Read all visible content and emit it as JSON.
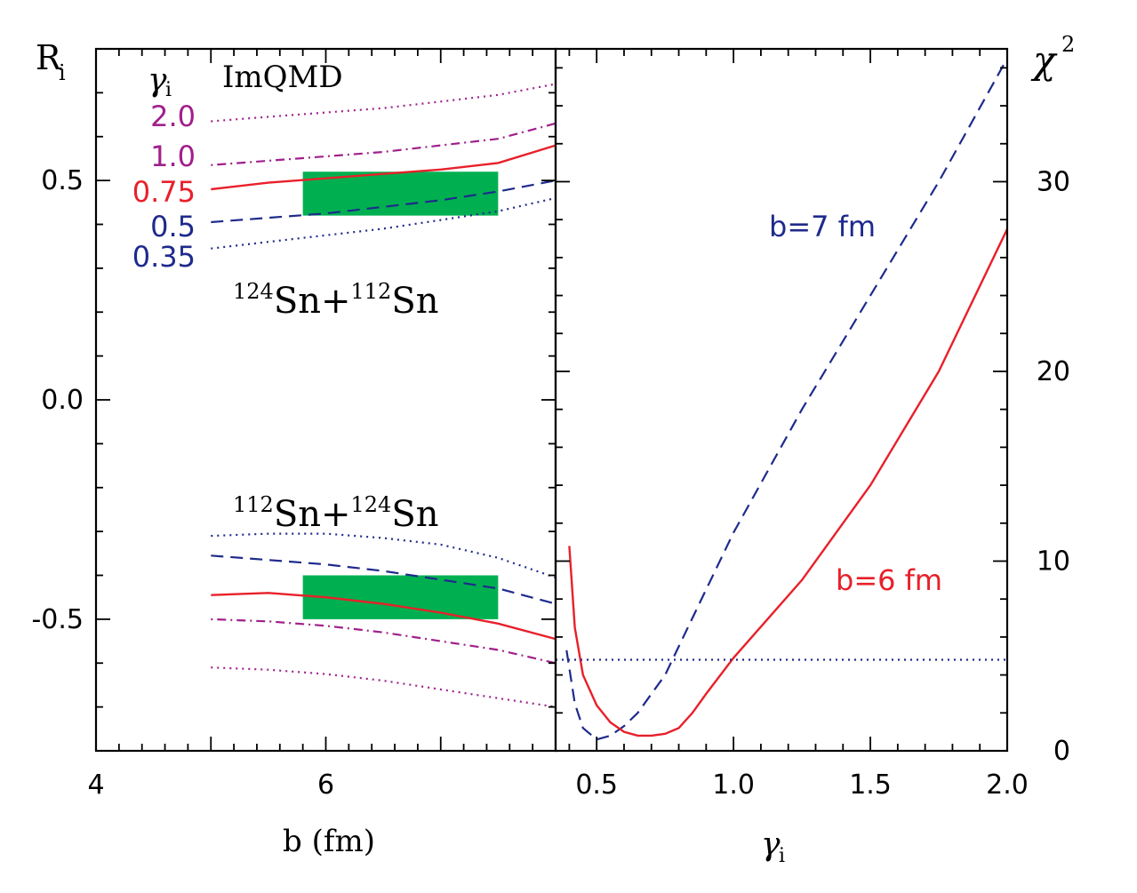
{
  "colors": {
    "red": "#e8202a",
    "blue": "#1e2a8c",
    "magenta": "#a0208c",
    "green": "#00b050",
    "axis": "#000000"
  },
  "chart_data": [
    {
      "type": "line",
      "panel": "left",
      "title": "",
      "xlabel": "b (fm)",
      "ylabel": "R",
      "ylabel_sub": "i",
      "xlim": [
        4,
        8
      ],
      "ylim": [
        -0.8,
        0.8
      ],
      "xticks": [
        "4",
        "6"
      ],
      "yticks": [
        "0.5",
        "0.0",
        "-0.5"
      ],
      "model_label": "ImQMD",
      "legend_title": "γ",
      "legend_title_sub": "i",
      "legend": [
        {
          "label": "2.0",
          "color": "#a0208c"
        },
        {
          "label": "1.0",
          "color": "#a0208c"
        },
        {
          "label": "0.75",
          "color": "#e8202a"
        },
        {
          "label": "0.5",
          "color": "#1e2a8c"
        },
        {
          "label": "0.35",
          "color": "#1e2a8c"
        }
      ],
      "annotations": [
        {
          "text_parts": [
            "124",
            "Sn+",
            "112",
            "Sn"
          ]
        },
        {
          "text_parts": [
            "112",
            "Sn+",
            "124",
            "Sn"
          ]
        }
      ],
      "x": [
        5,
        5.5,
        6,
        6.5,
        7,
        7.5,
        8
      ],
      "series": [
        {
          "name": "2.0 (124Sn+112Sn)",
          "style": "dotted",
          "color": "#a0208c",
          "values": [
            0.635,
            0.645,
            0.655,
            0.665,
            0.68,
            0.695,
            0.72
          ]
        },
        {
          "name": "1.0 (124Sn+112Sn)",
          "style": "dashdot",
          "color": "#a0208c",
          "values": [
            0.535,
            0.545,
            0.555,
            0.565,
            0.58,
            0.595,
            0.63
          ]
        },
        {
          "name": "0.75 (124Sn+112Sn)",
          "style": "solid",
          "color": "#e8202a",
          "values": [
            0.48,
            0.495,
            0.505,
            0.515,
            0.525,
            0.54,
            0.58
          ]
        },
        {
          "name": "0.5 (124Sn+112Sn)",
          "style": "dashed",
          "color": "#1e2a8c",
          "values": [
            0.405,
            0.415,
            0.425,
            0.44,
            0.455,
            0.475,
            0.5
          ]
        },
        {
          "name": "0.35 (124Sn+112Sn)",
          "style": "dotted",
          "color": "#1e2a8c",
          "values": [
            0.345,
            0.36,
            0.375,
            0.39,
            0.41,
            0.43,
            0.46
          ]
        },
        {
          "name": "0.35 (112Sn+124Sn)",
          "style": "dotted",
          "color": "#1e2a8c",
          "values": [
            -0.31,
            -0.305,
            -0.305,
            -0.315,
            -0.33,
            -0.36,
            -0.405
          ]
        },
        {
          "name": "0.5 (112Sn+124Sn)",
          "style": "dashed",
          "color": "#1e2a8c",
          "values": [
            -0.355,
            -0.365,
            -0.375,
            -0.39,
            -0.41,
            -0.43,
            -0.465
          ]
        },
        {
          "name": "0.75 (112Sn+124Sn)",
          "style": "solid",
          "color": "#e8202a",
          "values": [
            -0.445,
            -0.44,
            -0.45,
            -0.465,
            -0.485,
            -0.51,
            -0.545
          ]
        },
        {
          "name": "1.0 (112Sn+124Sn)",
          "style": "dashdot",
          "color": "#a0208c",
          "values": [
            -0.5,
            -0.505,
            -0.515,
            -0.53,
            -0.55,
            -0.57,
            -0.6
          ]
        },
        {
          "name": "2.0 (112Sn+124Sn)",
          "style": "dotted",
          "color": "#a0208c",
          "values": [
            -0.61,
            -0.615,
            -0.625,
            -0.64,
            -0.66,
            -0.68,
            -0.7
          ]
        }
      ],
      "bands": [
        {
          "name": "data (124Sn+112Sn)",
          "color": "#00b050",
          "x": [
            5.8,
            7.5
          ],
          "y": [
            0.42,
            0.52
          ]
        },
        {
          "name": "data (112Sn+124Sn)",
          "color": "#00b050",
          "x": [
            5.8,
            7.5
          ],
          "y": [
            -0.5,
            -0.4
          ]
        }
      ]
    },
    {
      "type": "line",
      "panel": "right",
      "title": "",
      "xlabel": "γ",
      "xlabel_sub": "i",
      "ylabel": "χ",
      "ylabel_sup": "2",
      "xlim": [
        0.35,
        2.0
      ],
      "ylim": [
        0,
        37
      ],
      "xticks": [
        "0.5",
        "1.0",
        "1.5",
        "2.0"
      ],
      "yticks": [
        "0",
        "10",
        "20",
        "30"
      ],
      "series": [
        {
          "name": "b=7 fm",
          "style": "dashed",
          "color": "#1e2a8c",
          "x": [
            0.39,
            0.42,
            0.45,
            0.5,
            0.55,
            0.6,
            0.65,
            0.7,
            0.75,
            0.8,
            0.9,
            1.0,
            1.25,
            1.5,
            1.75,
            2.0
          ],
          "values": [
            5.3,
            2.5,
            1.2,
            0.6,
            0.8,
            1.3,
            2.0,
            3.0,
            4.0,
            5.5,
            8.5,
            11.5,
            18.0,
            24.0,
            30.0,
            36.5
          ]
        },
        {
          "name": "b=6 fm",
          "style": "solid",
          "color": "#e8202a",
          "x": [
            0.4,
            0.42,
            0.45,
            0.5,
            0.55,
            0.6,
            0.65,
            0.7,
            0.75,
            0.8,
            0.85,
            0.9,
            1.0,
            1.25,
            1.5,
            1.75,
            2.0
          ],
          "values": [
            10.8,
            6.5,
            4.0,
            2.4,
            1.5,
            1.0,
            0.8,
            0.8,
            0.9,
            1.2,
            2.0,
            3.0,
            4.9,
            9.0,
            14.0,
            20.0,
            27.5
          ]
        },
        {
          "name": "threshold",
          "style": "dotted",
          "color": "#1e2a8c",
          "x": [
            0.35,
            2.0
          ],
          "values": [
            4.8,
            4.8
          ]
        }
      ],
      "labels": [
        {
          "text": "b=7 fm",
          "color": "#1e2a8c"
        },
        {
          "text": "b=6 fm",
          "color": "#e8202a"
        }
      ]
    }
  ]
}
